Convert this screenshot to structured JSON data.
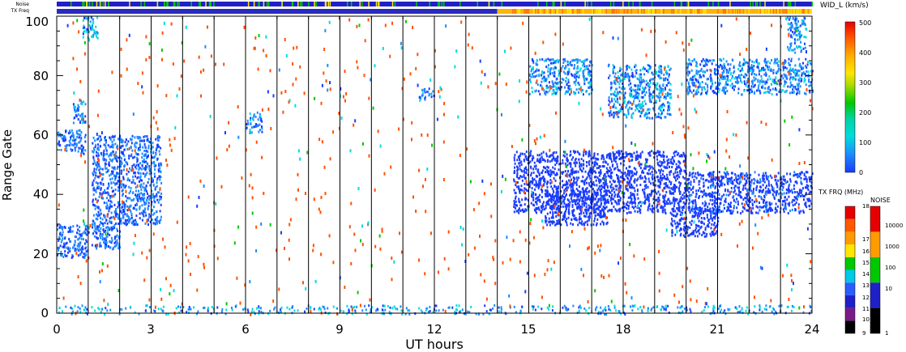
{
  "chart_data": {
    "type": "heatmap",
    "title": "",
    "xlabel": "UT hours",
    "ylabel": "Range Gate",
    "xlim": [
      0,
      24
    ],
    "ylim": [
      0,
      100
    ],
    "x_ticks": [
      "0",
      "3",
      "6",
      "9",
      "12",
      "15",
      "18",
      "21",
      "24"
    ],
    "y_ticks": [
      "0",
      "20",
      "40",
      "60",
      "80",
      "100"
    ],
    "strip_labels": {
      "noise": "Noise",
      "txfreq": "TX Freq"
    },
    "tx_freq_change_hour": 14.0,
    "width_colorbar": {
      "label": "WID_L (km/s)",
      "range": [
        0,
        500
      ],
      "ticks": [
        "0",
        "100",
        "200",
        "300",
        "400",
        "500"
      ]
    },
    "txfreq_colorbar": {
      "label": "TX FRQ (MHz)",
      "ticks": [
        "9",
        "10",
        "11",
        "12",
        "13",
        "14",
        "15",
        "16",
        "17",
        "18"
      ],
      "colors": [
        "#000000",
        "#7a1a8a",
        "#2020c8",
        "#2a5cff",
        "#00c8e6",
        "#00c800",
        "#ffe600",
        "#ff9a00",
        "#ff5a00",
        "#e60000"
      ]
    },
    "noise_colorbar": {
      "label": "NOISE",
      "ticks": [
        "1",
        "10",
        "100",
        "1000",
        "10000"
      ],
      "colors": [
        "#000000",
        "#2020c8",
        "#00c800",
        "#ff9a00",
        "#e60000"
      ]
    },
    "echo_regions": [
      {
        "x": [
          0.0,
          1.0
        ],
        "gates": [
          19,
          30
        ],
        "value": 60
      },
      {
        "x": [
          0.0,
          0.9
        ],
        "gates": [
          54,
          62
        ],
        "value": 70
      },
      {
        "x": [
          0.5,
          0.9
        ],
        "gates": [
          64,
          72
        ],
        "value": 90
      },
      {
        "x": [
          0.8,
          1.3
        ],
        "gates": [
          92,
          100
        ],
        "value": 120
      },
      {
        "x": [
          1.1,
          2.0
        ],
        "gates": [
          22,
          60
        ],
        "value": 60
      },
      {
        "x": [
          2.0,
          3.3
        ],
        "gates": [
          30,
          60
        ],
        "value": 70
      },
      {
        "x": [
          6.0,
          6.5
        ],
        "gates": [
          61,
          68
        ],
        "value": 80
      },
      {
        "x": [
          11.5,
          12.0
        ],
        "gates": [
          72,
          76
        ],
        "value": 80
      },
      {
        "x": [
          14.5,
          20.0
        ],
        "gates": [
          34,
          55
        ],
        "value": 30
      },
      {
        "x": [
          15.5,
          17.5
        ],
        "gates": [
          30,
          42
        ],
        "value": 35
      },
      {
        "x": [
          19.5,
          21.0
        ],
        "gates": [
          26,
          36
        ],
        "value": 35
      },
      {
        "x": [
          20.0,
          24.0
        ],
        "gates": [
          34,
          48
        ],
        "value": 40
      },
      {
        "x": [
          15.0,
          17.0
        ],
        "gates": [
          74,
          86
        ],
        "value": 90
      },
      {
        "x": [
          17.5,
          19.5
        ],
        "gates": [
          66,
          84
        ],
        "value": 90
      },
      {
        "x": [
          20.0,
          24.0
        ],
        "gates": [
          74,
          86
        ],
        "value": 80
      },
      {
        "x": [
          23.2,
          23.8
        ],
        "gates": [
          88,
          100
        ],
        "value": 100
      },
      {
        "x": [
          0.0,
          24.0
        ],
        "gates": [
          0,
          3
        ],
        "value": 100
      }
    ],
    "grid": "vertical lines every 1 h"
  }
}
